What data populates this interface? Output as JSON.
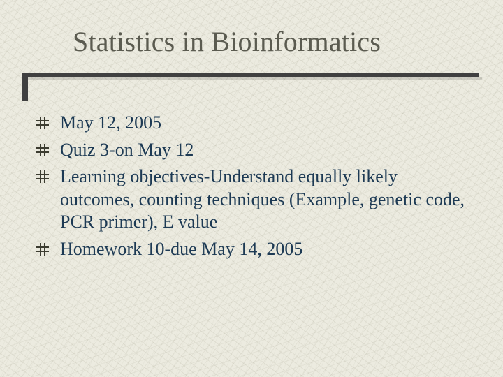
{
  "title": "Statistics in Bioinformatics",
  "title_color": "#5b5b50",
  "title_fontsize": 40,
  "rule_color": "#404040",
  "background_color": "#ecebe0",
  "bullet_color": "#3c3c30",
  "text_color": "#1d3a54",
  "body_fontsize": 26,
  "bullets": [
    "May 12, 2005",
    "Quiz 3-on May 12",
    "Learning objectives-Understand equally likely outcomes, counting techniques (Example, genetic code, PCR primer), E value",
    "Homework 10-due May 14, 2005"
  ]
}
